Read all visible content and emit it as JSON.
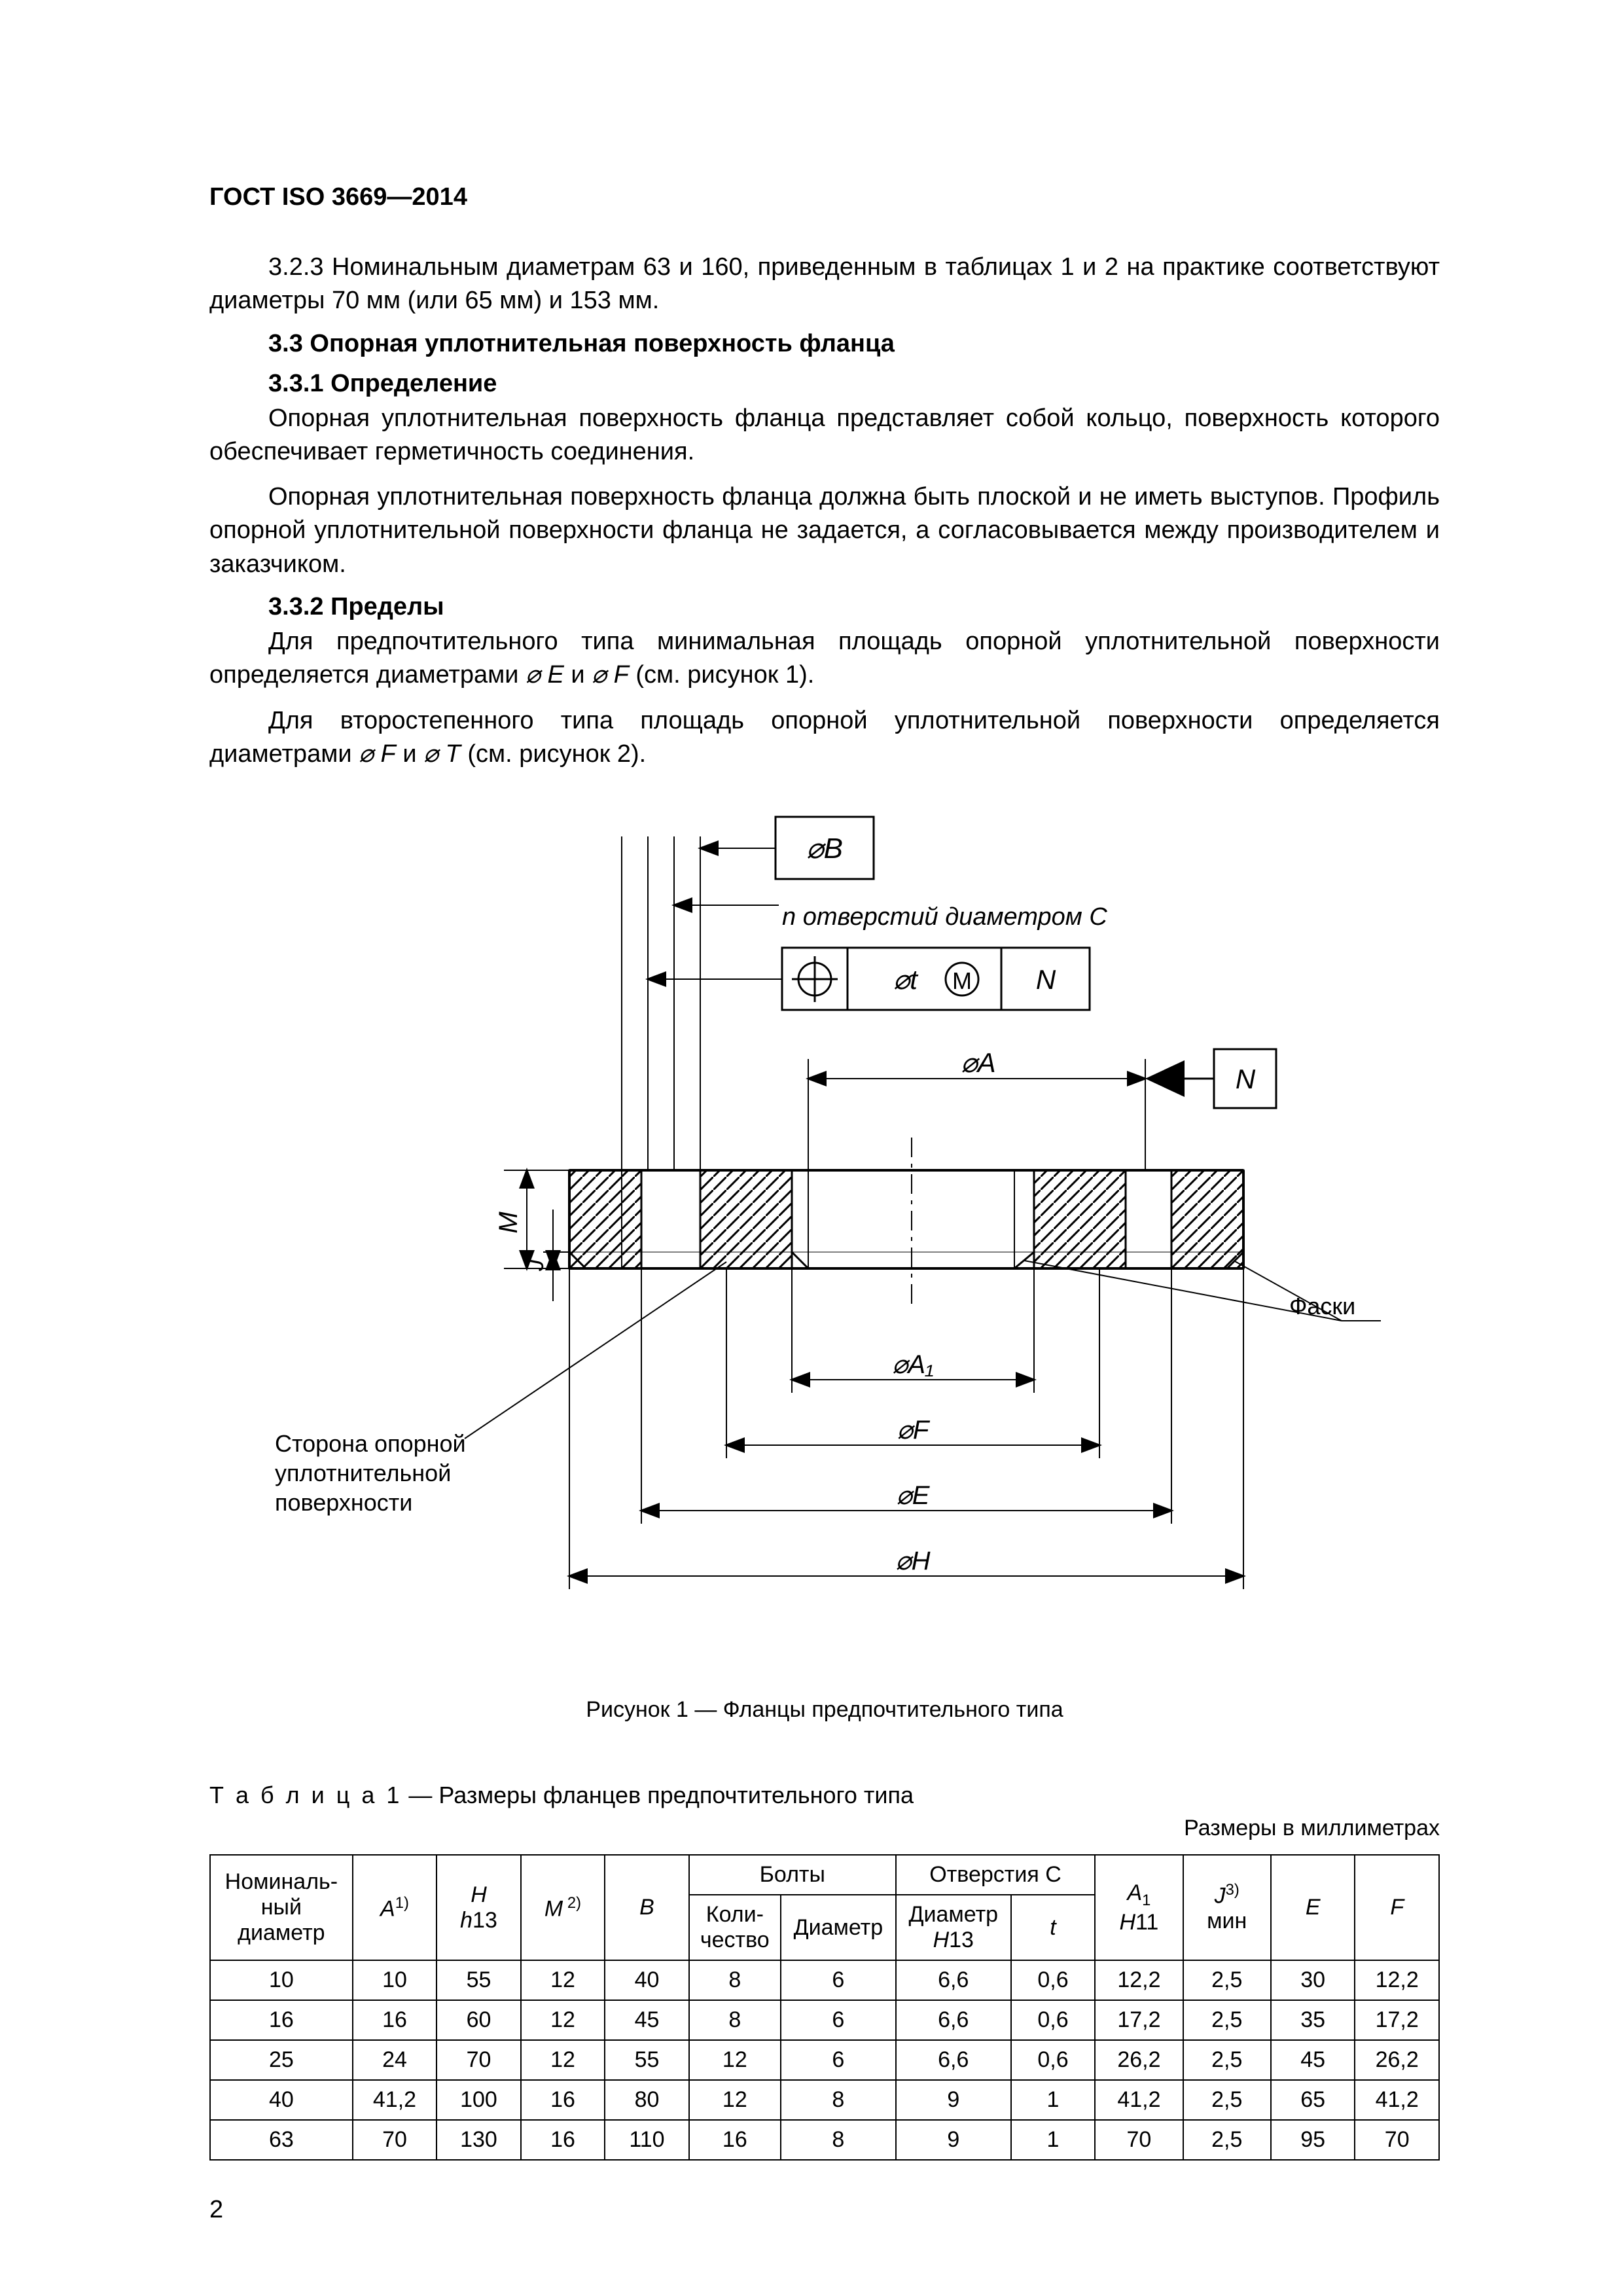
{
  "header": "ГОСТ ISO 3669—2014",
  "p323": "3.2.3  Номинальным диаметрам 63 и 160, приведенным в таблицах 1 и 2 на практике соответствуют диаметры 70 мм (или 65 мм) и 153 мм.",
  "s33": "3.3  Опорная уплотнительная поверхность фланца",
  "s331": "3.3.1  Определение",
  "p331a": "Опорная уплотнительная поверхность фланца представляет собой кольцо, поверхность которого обеспечивает герметичность соединения.",
  "p331b": "Опорная уплотнительная поверхность фланца должна быть плоской и не иметь выступов. Профиль опорной уплотнительной поверхности фланца не задается, а согласовывается между производителем и заказчиком.",
  "s332": "3.3.2  Пределы",
  "p332a_pre": "Для предпочтительного типа минимальная площадь опорной уплотнительной поверхности определяется диаметрами ",
  "p332a_e": "⌀ E",
  "p332a_mid": " и ",
  "p332a_f": "⌀ F",
  "p332a_post": " (см. рисунок 1).",
  "p332b_pre": "Для второстепенного типа площадь опорной уплотнительной поверхности определяется диаметрами ",
  "p332b_f": "⌀ F",
  "p332b_mid": " и ",
  "p332b_t": "⌀ T",
  "p332b_post": " (см. рисунок 2).",
  "figure": {
    "label_B": "⌀B",
    "hole_note": "n отверстий диаметром C",
    "fcf_sym": "⊕",
    "fcf_tol": "⌀t",
    "fcf_mod": "Ⓜ",
    "fcf_datum": "N",
    "dim_A": "⌀A",
    "datum_N": "N",
    "label_M": "M",
    "label_J": "J",
    "label_faski": "Фаски",
    "dim_A1": "⌀A₁",
    "dim_F": "⌀F",
    "dim_E": "⌀E",
    "dim_H": "⌀H",
    "side_note1": "Сторона опорной",
    "side_note2": "уплотнительной",
    "side_note3": "поверхности",
    "caption": "Рисунок 1 — Фланцы предпочтительного типа",
    "colors": {
      "stroke": "#000000",
      "hatch": "#000000",
      "bg": "#ffffff"
    }
  },
  "table": {
    "caption_prefix": "Т а б л и ц а  1",
    "caption_rest": " — Размеры фланцев предпочтительного типа",
    "units": "Размеры в миллиметрах",
    "columns": {
      "nom": "Номиналь-\nный диаметр",
      "A": "A",
      "A_sup": "1)",
      "H": "H",
      "H_sub": "h13",
      "M": "M",
      "M_sup": "2)",
      "B": "B",
      "bolts": "Болты",
      "bolt_qty": "Коли-\nчество",
      "bolt_dia": "Диаметр",
      "holes": "Отверстия C",
      "hole_dia": "Диаметр",
      "hole_dia_sub": "H13",
      "t": "t",
      "A1": "A₁",
      "A1_sub": "H11",
      "J": "J",
      "J_sup": "3)",
      "J_sub": "мин",
      "E": "E",
      "F": "F"
    },
    "rows": [
      [
        "10",
        "10",
        "55",
        "12",
        "40",
        "8",
        "6",
        "6,6",
        "0,6",
        "12,2",
        "2,5",
        "30",
        "12,2"
      ],
      [
        "16",
        "16",
        "60",
        "12",
        "45",
        "8",
        "6",
        "6,6",
        "0,6",
        "17,2",
        "2,5",
        "35",
        "17,2"
      ],
      [
        "25",
        "24",
        "70",
        "12",
        "55",
        "12",
        "6",
        "6,6",
        "0,6",
        "26,2",
        "2,5",
        "45",
        "26,2"
      ],
      [
        "40",
        "41,2",
        "100",
        "16",
        "80",
        "12",
        "8",
        "9",
        "1",
        "41,2",
        "2,5",
        "65",
        "41,2"
      ],
      [
        "63",
        "70",
        "130",
        "16",
        "110",
        "16",
        "8",
        "9",
        "1",
        "70",
        "2,5",
        "95",
        "70"
      ]
    ]
  },
  "page_number": "2"
}
